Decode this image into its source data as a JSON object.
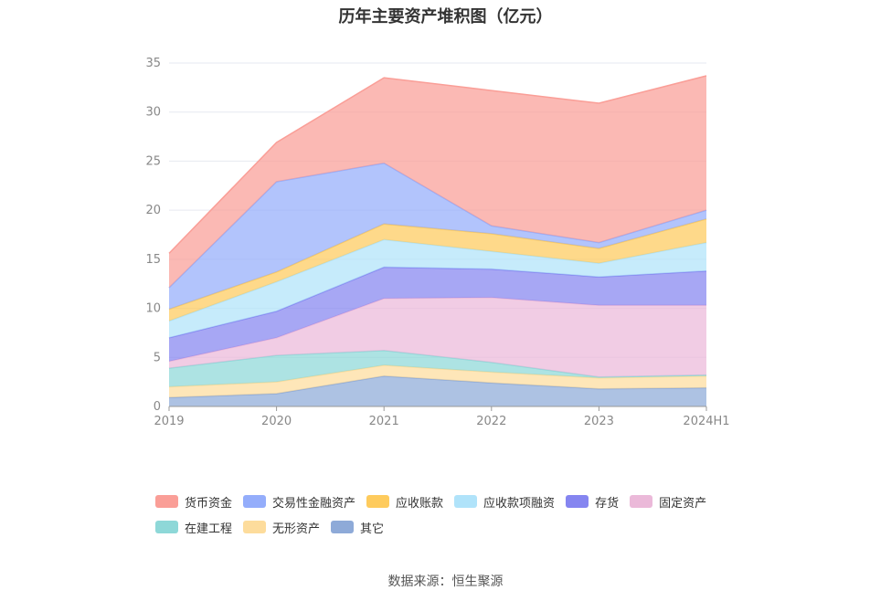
{
  "chart_data": {
    "type": "area",
    "stacked": true,
    "title": "历年主要资产堆积图（亿元）",
    "categories": [
      "2019",
      "2020",
      "2021",
      "2022",
      "2023",
      "2024H1"
    ],
    "y_ticks": [
      "0",
      "5",
      "10",
      "15",
      "20",
      "25",
      "30",
      "35"
    ],
    "ylim": [
      0,
      35
    ],
    "grid": true,
    "legend_position": "bottom",
    "series": [
      {
        "name": "其它",
        "color": "#8eaad8",
        "values": [
          0.9,
          1.3,
          3.1,
          2.4,
          1.8,
          1.9
        ]
      },
      {
        "name": "无形资产",
        "color": "#fddc9c",
        "values": [
          1.1,
          1.2,
          1.1,
          1.1,
          1.1,
          1.2
        ]
      },
      {
        "name": "在建工程",
        "color": "#8ed8d8",
        "values": [
          1.9,
          2.7,
          1.5,
          1.0,
          0.1,
          0.1
        ]
      },
      {
        "name": "固定资产",
        "color": "#ebb9d9",
        "values": [
          0.7,
          1.8,
          5.3,
          6.6,
          7.3,
          7.1
        ]
      },
      {
        "name": "存货",
        "color": "#8585f0",
        "values": [
          2.4,
          2.7,
          3.2,
          2.9,
          2.9,
          3.5
        ]
      },
      {
        "name": "应收款项融资",
        "color": "#b0e3fa",
        "values": [
          1.7,
          3.0,
          2.8,
          1.8,
          1.4,
          2.9
        ]
      },
      {
        "name": "应收账款",
        "color": "#fecb5d",
        "values": [
          1.2,
          1.0,
          1.6,
          1.8,
          1.5,
          2.4
        ]
      },
      {
        "name": "交易性金融资产",
        "color": "#94adfb",
        "values": [
          2.2,
          9.2,
          6.2,
          0.8,
          0.6,
          0.9
        ]
      },
      {
        "name": "货币资金",
        "color": "#fa9e97",
        "values": [
          3.5,
          4.0,
          8.7,
          13.8,
          14.2,
          13.7
        ]
      }
    ]
  },
  "legend": [
    {
      "name": "货币资金",
      "color": "#fa9e97"
    },
    {
      "name": "交易性金融资产",
      "color": "#94adfb"
    },
    {
      "name": "应收账款",
      "color": "#fecb5d"
    },
    {
      "name": "应收款项融资",
      "color": "#b0e3fa"
    },
    {
      "name": "存货",
      "color": "#8585f0"
    },
    {
      "name": "固定资产",
      "color": "#ebb9d9"
    },
    {
      "name": "在建工程",
      "color": "#8ed8d8"
    },
    {
      "name": "无形资产",
      "color": "#fddc9c"
    },
    {
      "name": "其它",
      "color": "#8eaad8"
    }
  ],
  "source": "数据来源：恒生聚源"
}
